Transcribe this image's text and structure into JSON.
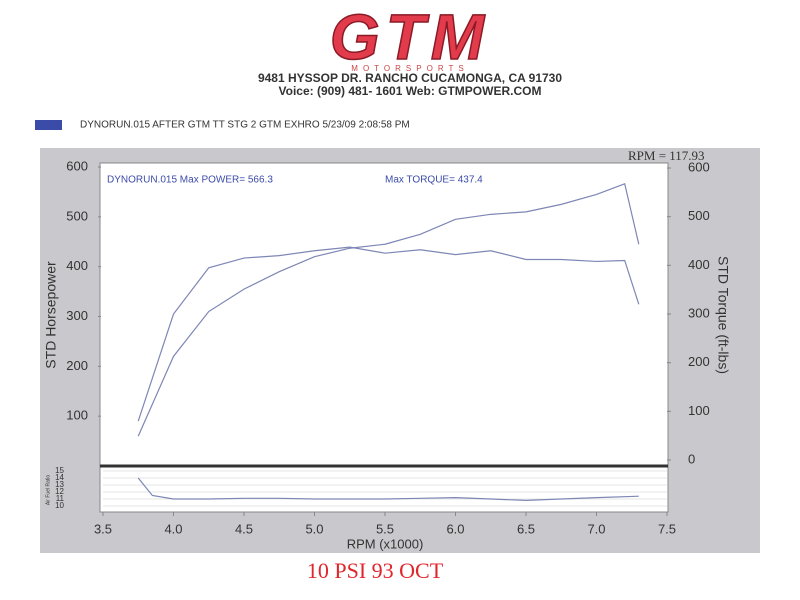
{
  "header": {
    "logo": "GTM",
    "logo_sub": "MOTORSPORTS",
    "address": "9481 HYSSOP DR. RANCHO CUCAMONGA, CA 91730",
    "contact": "Voice: (909) 481- 1601     Web: GTMPOWER.COM",
    "run_label": "DYNORUN.015   AFTER GTM TT STG 2 GTM EXHRO  5/23/09 2:08:58 PM",
    "run_color": "#3b4ba8",
    "footer": "10 PSI 93 OCT"
  },
  "chart_data": [
    {
      "type": "line",
      "ylabel": "STD Horsepower",
      "y2label": "STD Torque (ft-lbs)",
      "annotations": [
        "DYNORUN.015  Max POWER= 566.3",
        "Max TORQUE= 437.4",
        "RPM = 117.93"
      ],
      "x": [
        3.75,
        4.0,
        4.25,
        4.5,
        4.75,
        5.0,
        5.25,
        5.5,
        5.75,
        6.0,
        6.25,
        6.5,
        6.75,
        7.0,
        7.2,
        7.3
      ],
      "series": [
        {
          "color": "#7d86b5",
          "values": [
            60,
            220,
            310,
            355,
            390,
            420,
            437,
            445,
            465,
            495,
            505,
            510,
            525,
            545,
            566.3,
            445
          ]
        },
        {
          "color": "#7d86b5",
          "axis": "y2",
          "values": [
            80,
            300,
            395,
            415,
            420,
            430,
            437.4,
            425,
            432,
            422,
            430,
            412,
            412,
            408,
            410,
            320
          ]
        }
      ],
      "xlim": [
        3.5,
        7.5
      ],
      "ylim": [
        0,
        600
      ],
      "yticks": [
        100,
        200,
        300,
        400,
        500,
        600
      ],
      "y2lim": [
        0,
        600
      ],
      "y2ticks": [
        0,
        100,
        200,
        300,
        400,
        500,
        600
      ]
    },
    {
      "type": "line",
      "ylabel": "Air Fuel Ratio",
      "xlabel": "RPM (x1000)",
      "x": [
        3.75,
        3.85,
        4.0,
        4.25,
        4.5,
        4.75,
        5.0,
        5.25,
        5.5,
        5.75,
        6.0,
        6.25,
        6.5,
        6.75,
        7.0,
        7.3
      ],
      "series": [
        {
          "color": "#7d86b5",
          "values": [
            14,
            11.5,
            11,
            11,
            11.1,
            11.1,
            11,
            11,
            11,
            11.1,
            11.2,
            11,
            10.8,
            11,
            11.2,
            11.4
          ]
        }
      ],
      "xlim": [
        3.5,
        7.5
      ],
      "xticks": [
        3.5,
        {
          "value": 4,
          "label": "4.0"
        },
        4.5,
        {
          "value": 5,
          "label": "5.0"
        },
        5.5,
        {
          "value": 6,
          "label": "6.0"
        },
        6.5,
        {
          "value": 7,
          "label": "7.0"
        },
        7.5
      ],
      "ylim": [
        10,
        15
      ],
      "yticks": [
        10,
        11,
        12,
        13,
        14,
        15
      ],
      "grid": true
    }
  ]
}
